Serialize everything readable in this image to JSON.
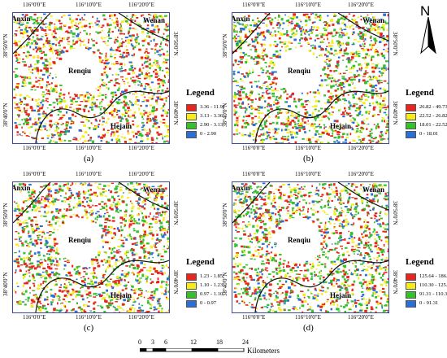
{
  "panels": [
    {
      "caption": "(a)",
      "legend_title": "Legend",
      "legend": [
        {
          "label": "3.36 - 11.91",
          "color": "#e8261c"
        },
        {
          "label": "3.13 - 3.36",
          "color": "#f5ec1a"
        },
        {
          "label": "2.90 - 3.13",
          "color": "#35c02e"
        },
        {
          "label": "0 - 2.90",
          "color": "#2a6fd6"
        }
      ]
    },
    {
      "caption": "(b)",
      "legend_title": "Legend",
      "legend": [
        {
          "label": "26.82 - 49.73",
          "color": "#e8261c"
        },
        {
          "label": "22.52 - 26.82",
          "color": "#f5ec1a"
        },
        {
          "label": "18.01 - 22.52",
          "color": "#35c02e"
        },
        {
          "label": "0 - 18.01",
          "color": "#2a6fd6"
        }
      ]
    },
    {
      "caption": "(c)",
      "legend_title": "Legend",
      "legend": [
        {
          "label": "1.23 - 1.85",
          "color": "#e8261c"
        },
        {
          "label": "1.10 - 1.23",
          "color": "#f5ec1a"
        },
        {
          "label": "0.97 - 1.10",
          "color": "#35c02e"
        },
        {
          "label": "0 - 0.97",
          "color": "#2a6fd6"
        }
      ]
    },
    {
      "caption": "(d)",
      "legend_title": "Legend",
      "legend": [
        {
          "label": "125.64 - 186.27",
          "color": "#e8261c"
        },
        {
          "label": "110.30 - 125.64",
          "color": "#f5ec1a"
        },
        {
          "label": "91.31 - 110.30",
          "color": "#35c02e"
        },
        {
          "label": "0 - 91.31",
          "color": "#2a6fd6"
        }
      ]
    }
  ],
  "map_labels": {
    "top_ticks": [
      "116°0'0\"E",
      "116°10'0\"E",
      "116°20'0\"E"
    ],
    "bottom_ticks": [
      "116°0'0\"E",
      "116°10'0\"E",
      "116°20'0\"E"
    ],
    "left_ticks": [
      "38°50'0\"N",
      "38°40'0\"N"
    ],
    "right_ticks": [
      "38°50'0\"N",
      "38°40'0\"N"
    ],
    "places": {
      "anxin": "Anxin",
      "wenan": "Wenan",
      "renqiu": "Renqiu",
      "hejain": "Hejain"
    }
  },
  "north_arrow": {
    "label": "N"
  },
  "scale_bar": {
    "ticks": [
      "0",
      "3",
      "6",
      "12",
      "18",
      "24"
    ],
    "unit": "Kilometers"
  }
}
